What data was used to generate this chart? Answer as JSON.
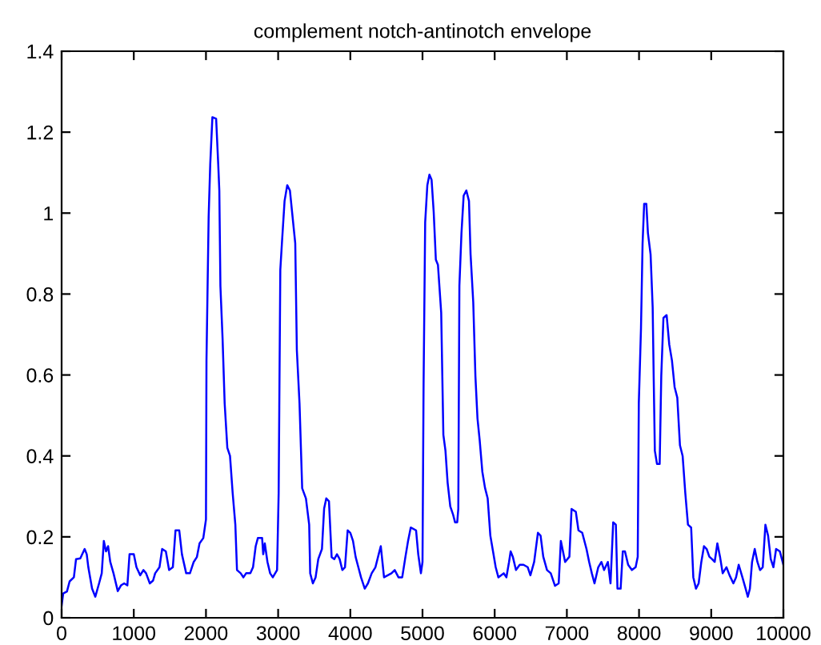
{
  "chart_data": {
    "type": "line",
    "title": "complement notch-antinotch envelope",
    "series": [
      {
        "color": "#0000ff",
        "x": [
          0,
          22,
          74,
          111,
          170,
          200,
          259,
          319,
          348,
          370,
          422,
          467,
          519,
          556,
          585,
          615,
          644,
          674,
          719,
          778,
          822,
          867,
          911,
          941,
          1000,
          1037,
          1089,
          1133,
          1170,
          1222,
          1267,
          1296,
          1356,
          1393,
          1444,
          1489,
          1541,
          1578,
          1630,
          1667,
          1726,
          1778,
          1830,
          1874,
          1911,
          1963,
          2000,
          2007,
          2037,
          2059,
          2089,
          2141,
          2170,
          2185,
          2200,
          2230,
          2259,
          2296,
          2333,
          2370,
          2407,
          2430,
          2481,
          2519,
          2556,
          2615,
          2652,
          2689,
          2719,
          2778,
          2793,
          2815,
          2852,
          2889,
          2926,
          2985,
          3007,
          3030,
          3052,
          3089,
          3126,
          3163,
          3193,
          3237,
          3259,
          3296,
          3333,
          3385,
          3430,
          3444,
          3481,
          3519,
          3556,
          3607,
          3637,
          3667,
          3704,
          3741,
          3778,
          3815,
          3852,
          3889,
          3926,
          3963,
          4000,
          4037,
          4074,
          4111,
          4148,
          4200,
          4244,
          4296,
          4348,
          4393,
          4422,
          4467,
          4519,
          4570,
          4615,
          4667,
          4719,
          4763,
          4800,
          4837,
          4911,
          4941,
          4978,
          5000,
          5015,
          5037,
          5067,
          5096,
          5126,
          5155,
          5185,
          5214,
          5259,
          5289,
          5318,
          5348,
          5385,
          5422,
          5451,
          5481,
          5496,
          5511,
          5540,
          5570,
          5607,
          5644,
          5666,
          5703,
          5733,
          5762,
          5792,
          5829,
          5866,
          5903,
          5940,
          5977,
          6014,
          6051,
          6088,
          6125,
          6162,
          6199,
          6221,
          6251,
          6295,
          6347,
          6399,
          6458,
          6495,
          6547,
          6599,
          6636,
          6673,
          6725,
          6777,
          6836,
          6887,
          6917,
          6976,
          7035,
          7065,
          7124,
          7161,
          7213,
          7272,
          7309,
          7346,
          7383,
          7435,
          7479,
          7516,
          7568,
          7605,
          7642,
          7679,
          7701,
          7745,
          7775,
          7805,
          7849,
          7901,
          7953,
          7982,
          7997,
          8027,
          8049,
          8071,
          8101,
          8123,
          8160,
          8189,
          8204,
          8219,
          8249,
          8286,
          8308,
          8338,
          8382,
          8419,
          8456,
          8493,
          8530,
          8567,
          8604,
          8641,
          8678,
          8722,
          8752,
          8789,
          8826,
          8863,
          8900,
          8937,
          8974,
          9011,
          9048,
          9085,
          9122,
          9159,
          9211,
          9254,
          9307,
          9344,
          9381,
          9432,
          9477,
          9507,
          9536,
          9566,
          9603,
          9640,
          9677,
          9714,
          9751,
          9788,
          9825,
          9862,
          9899,
          9951,
          10000
        ],
        "values": [
          0.03,
          0.06,
          0.065,
          0.09,
          0.1,
          0.145,
          0.147,
          0.17,
          0.157,
          0.125,
          0.072,
          0.052,
          0.085,
          0.11,
          0.19,
          0.164,
          0.177,
          0.138,
          0.11,
          0.066,
          0.08,
          0.085,
          0.08,
          0.157,
          0.157,
          0.125,
          0.105,
          0.118,
          0.11,
          0.085,
          0.092,
          0.11,
          0.125,
          0.17,
          0.164,
          0.118,
          0.125,
          0.216,
          0.216,
          0.157,
          0.11,
          0.11,
          0.138,
          0.15,
          0.184,
          0.197,
          0.243,
          0.636,
          0.99,
          1.12,
          1.237,
          1.233,
          1.12,
          1.056,
          0.82,
          0.69,
          0.53,
          0.42,
          0.4,
          0.308,
          0.23,
          0.118,
          0.11,
          0.1,
          0.11,
          0.11,
          0.125,
          0.177,
          0.197,
          0.197,
          0.157,
          0.184,
          0.138,
          0.11,
          0.1,
          0.118,
          0.308,
          0.86,
          0.925,
          1.03,
          1.069,
          1.056,
          1.003,
          0.925,
          0.662,
          0.53,
          0.32,
          0.295,
          0.23,
          0.11,
          0.085,
          0.1,
          0.145,
          0.17,
          0.27,
          0.295,
          0.288,
          0.15,
          0.145,
          0.157,
          0.145,
          0.118,
          0.125,
          0.216,
          0.21,
          0.19,
          0.15,
          0.125,
          0.1,
          0.072,
          0.085,
          0.11,
          0.125,
          0.157,
          0.177,
          0.1,
          0.105,
          0.11,
          0.118,
          0.1,
          0.1,
          0.15,
          0.19,
          0.223,
          0.216,
          0.157,
          0.11,
          0.138,
          0.58,
          0.977,
          1.069,
          1.095,
          1.082,
          1.003,
          0.885,
          0.872,
          0.754,
          0.452,
          0.413,
          0.334,
          0.275,
          0.256,
          0.236,
          0.236,
          0.269,
          0.82,
          0.951,
          1.043,
          1.056,
          1.03,
          0.898,
          0.78,
          0.597,
          0.492,
          0.439,
          0.361,
          0.321,
          0.295,
          0.203,
          0.164,
          0.125,
          0.1,
          0.105,
          0.11,
          0.1,
          0.138,
          0.164,
          0.151,
          0.118,
          0.131,
          0.131,
          0.125,
          0.105,
          0.138,
          0.21,
          0.203,
          0.151,
          0.118,
          0.11,
          0.079,
          0.085,
          0.19,
          0.138,
          0.151,
          0.269,
          0.262,
          0.216,
          0.21,
          0.17,
          0.138,
          0.11,
          0.085,
          0.125,
          0.138,
          0.118,
          0.138,
          0.085,
          0.236,
          0.23,
          0.072,
          0.072,
          0.164,
          0.164,
          0.131,
          0.118,
          0.125,
          0.151,
          0.531,
          0.715,
          0.925,
          1.023,
          1.023,
          0.951,
          0.898,
          0.767,
          0.584,
          0.413,
          0.38,
          0.38,
          0.597,
          0.741,
          0.748,
          0.675,
          0.636,
          0.57,
          0.544,
          0.426,
          0.4,
          0.308,
          0.23,
          0.223,
          0.1,
          0.072,
          0.085,
          0.138,
          0.177,
          0.17,
          0.151,
          0.145,
          0.138,
          0.184,
          0.151,
          0.11,
          0.125,
          0.105,
          0.085,
          0.1,
          0.131,
          0.1,
          0.072,
          0.052,
          0.072,
          0.138,
          0.17,
          0.138,
          0.118,
          0.125,
          0.23,
          0.203,
          0.145,
          0.125,
          0.17,
          0.164,
          0.131
        ]
      }
    ],
    "xlim": [
      0,
      10000
    ],
    "xticks": [
      0,
      1000,
      2000,
      3000,
      4000,
      5000,
      6000,
      7000,
      8000,
      9000,
      10000
    ],
    "ylim": [
      0,
      1.4
    ],
    "yticks": [
      0,
      0.2,
      0.4,
      0.6,
      0.8,
      1,
      1.2,
      1.4
    ]
  }
}
